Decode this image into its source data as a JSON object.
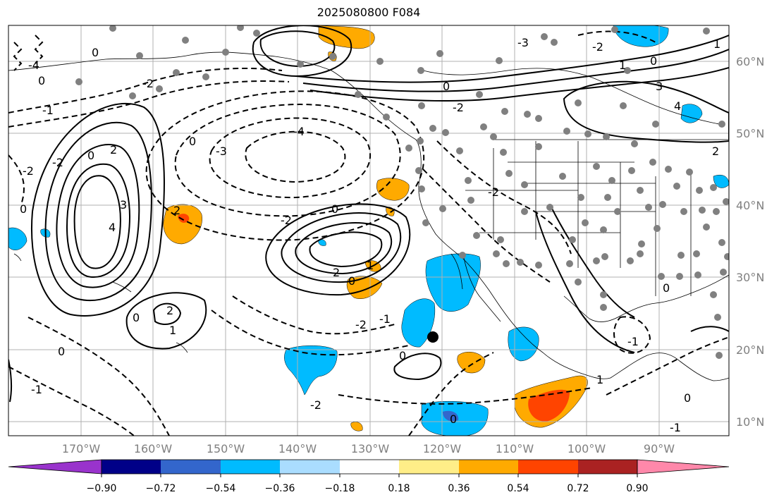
{
  "title": "2025080800 F084",
  "lon_labels": [
    "170°W",
    "160°W",
    "150°W",
    "140°W",
    "130°W",
    "120°W",
    "110°W",
    "100°W",
    "90°W"
  ],
  "lat_labels": [
    "60°N",
    "50°N",
    "40°N",
    "30°N",
    "20°N",
    "10°N"
  ],
  "colorbar": {
    "colors": [
      "#9933cc",
      "#000088",
      "#3366cc",
      "#00bbff",
      "#aaddff",
      "#ffffff",
      "#ffee88",
      "#ffaa00",
      "#ff4400",
      "#aa2222",
      "#ff88aa"
    ],
    "tick_labels": [
      "−0.90",
      "−0.72",
      "−0.54",
      "−0.36",
      "−0.18",
      "0.18",
      "0.36",
      "0.54",
      "0.72",
      "0.90"
    ]
  },
  "contour_labels": [
    "0",
    "1",
    "2",
    "3",
    "4",
    "-1",
    "-2",
    "-3",
    "-4"
  ],
  "colors": {
    "land": "#000000",
    "grid": "#b0b0b0",
    "station": "#808080",
    "positive": "#ffaa00",
    "negative": "#00bbff"
  }
}
